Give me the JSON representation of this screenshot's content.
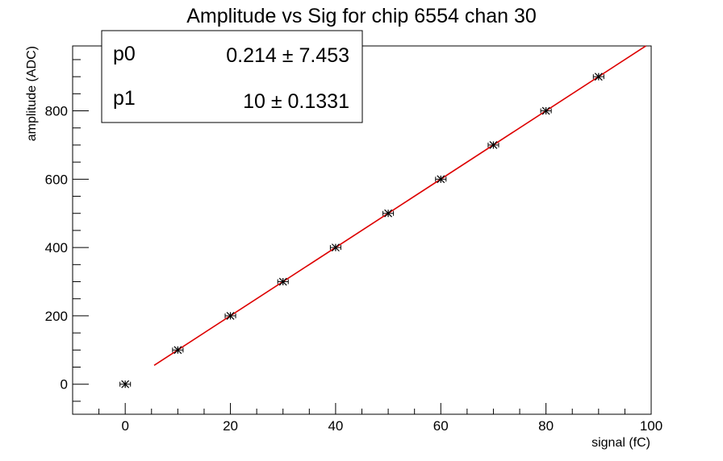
{
  "chart_data": {
    "type": "scatter",
    "title": "Amplitude vs Sig for chip 6554 chan 30",
    "xlabel": "signal (fC)",
    "ylabel": "amplitude (ADC)",
    "xlim": [
      -10,
      100
    ],
    "ylim": [
      -88,
      990
    ],
    "x_ticks": [
      0,
      20,
      40,
      60,
      80,
      100
    ],
    "y_ticks": [
      0,
      200,
      400,
      600,
      800
    ],
    "grid": false,
    "series": [
      {
        "marker": "star",
        "color": "#000000",
        "x": [
          0,
          10,
          20,
          30,
          40,
          50,
          60,
          70,
          80,
          90
        ],
        "y": [
          0,
          100,
          200,
          300,
          400,
          500,
          600,
          700,
          800,
          900
        ],
        "x_err": [
          1,
          1,
          1,
          1,
          1,
          1,
          1,
          1,
          1,
          1
        ]
      }
    ],
    "fit": {
      "color": "#dd0000",
      "x_range": [
        5.5,
        99
      ],
      "p0_value": 0.214,
      "p1_value": 10
    },
    "stats_box": {
      "rows": [
        {
          "name": "p0",
          "value": "0.214 ± 7.453"
        },
        {
          "name": "p1",
          "value": "10 ± 0.1331"
        }
      ]
    }
  }
}
